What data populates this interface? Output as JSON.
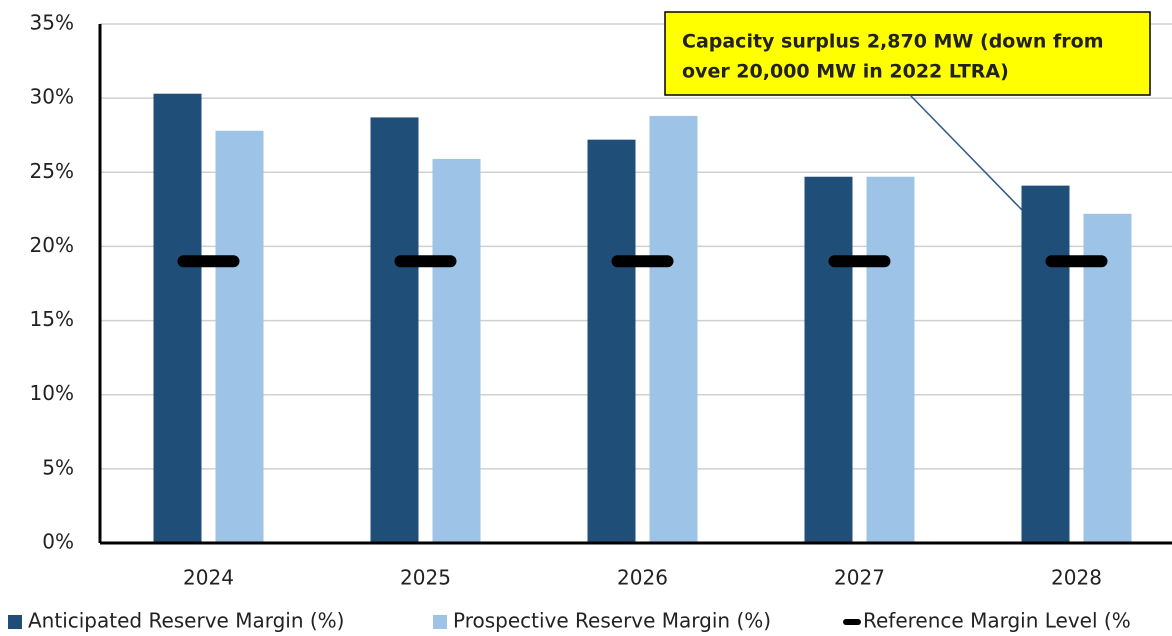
{
  "chart_data": {
    "type": "bar",
    "categories": [
      "2024",
      "2025",
      "2026",
      "2027",
      "2028"
    ],
    "series": [
      {
        "name": "Anticipated Reserve Margin (%)",
        "color": "#1f4e79",
        "values": [
          30.3,
          28.7,
          27.2,
          24.7,
          24.1
        ]
      },
      {
        "name": "Prospective Reserve Margin (%)",
        "color": "#9dc3e6",
        "values": [
          27.8,
          25.9,
          28.8,
          24.7,
          22.2
        ]
      },
      {
        "name": "Reference Margin Level (%",
        "color": "#000000",
        "marker": "dash",
        "values": [
          19,
          19,
          19,
          19,
          19
        ]
      }
    ],
    "ylim": [
      0,
      35
    ],
    "yticks": [
      {
        "value": 0,
        "label": "0%"
      },
      {
        "value": 5,
        "label": "5%"
      },
      {
        "value": 10,
        "label": "10%"
      },
      {
        "value": 15,
        "label": "15%"
      },
      {
        "value": 20,
        "label": "20%"
      },
      {
        "value": 25,
        "label": "25%"
      },
      {
        "value": 30,
        "label": "30%"
      },
      {
        "value": 35,
        "label": "35%"
      }
    ],
    "grid": true,
    "annotation": [
      "Capacity surplus 2,870 MW (down from",
      "over 20,000 MW in 2022 LTRA)"
    ]
  }
}
